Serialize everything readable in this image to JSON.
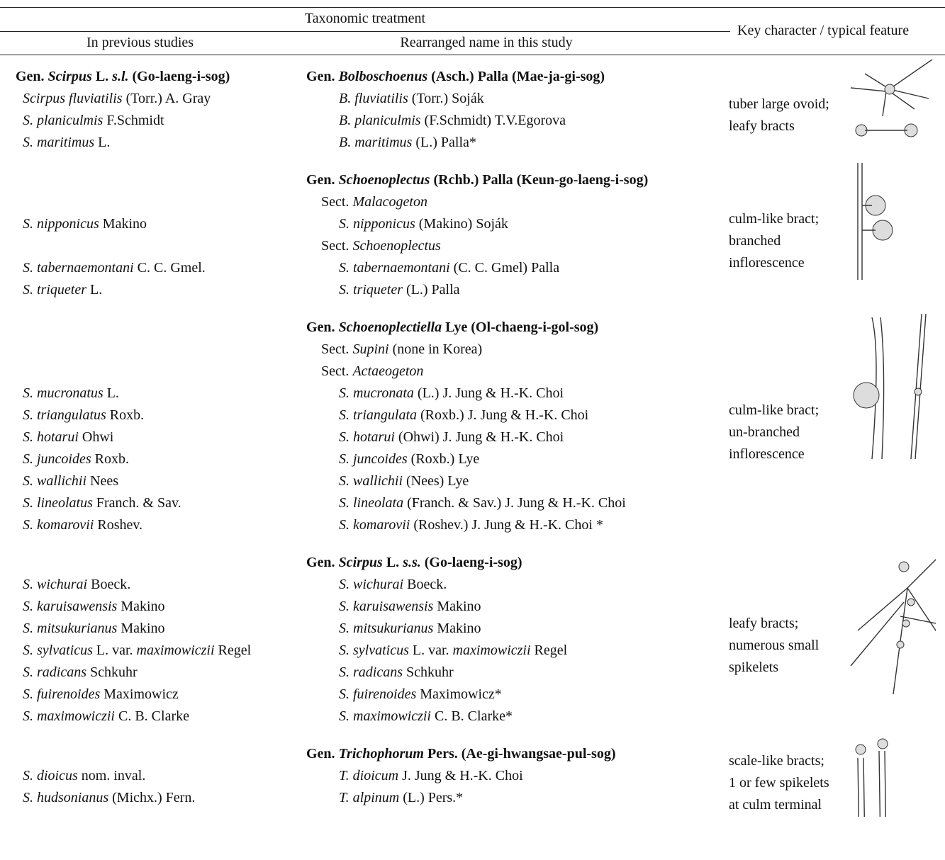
{
  "header": {
    "group": "Taxonomic treatment",
    "prev": "In previous studies",
    "new": "Rearranged name in this study",
    "key": "Key character / typical feature"
  },
  "groups": [
    {
      "heading_prev": [
        "Gen. ",
        {
          "i": "Scirpus"
        },
        " L. ",
        {
          "i": "s.l."
        },
        " (Go-laeng-i-sog)"
      ],
      "heading_new": [
        "Gen. ",
        {
          "i": "Bolboschoenus"
        },
        " (Asch.) Palla (Mae-ja-gi-sog)"
      ],
      "rows": [
        {
          "prev": [
            {
              "i": "Scirpus fluviatilis"
            },
            " (Torr.) A. Gray"
          ],
          "new": [
            {
              "i": "B. fluviatilis"
            },
            " (Torr.) Soják"
          ]
        },
        {
          "prev": [
            {
              "i": "S. planiculmis"
            },
            " F.Schmidt"
          ],
          "new": [
            {
              "i": "B. planiculmis"
            },
            " (F.Schmidt) T.V.Egorova"
          ]
        },
        {
          "prev": [
            {
              "i": "S. maritimus"
            },
            " L."
          ],
          "new": [
            {
              "i": "B. maritimus"
            },
            " (L.) Palla*"
          ]
        }
      ],
      "feature": [
        "tuber large ovoid;",
        "leafy bracts"
      ]
    },
    {
      "heading_new": [
        "Gen. ",
        {
          "i": "Schoenoplectus"
        },
        " (Rchb.) Palla (Keun-go-laeng-i-sog)"
      ],
      "rows": [
        {
          "sect": [
            "Sect. ",
            {
              "i": "Malacogeton"
            }
          ]
        },
        {
          "prev": [
            {
              "i": "S. nipponicus"
            },
            " Makino"
          ],
          "new": [
            {
              "i": "S. nipponicus"
            },
            " (Makino) Soják"
          ]
        },
        {
          "sect": [
            "Sect. ",
            {
              "i": "Schoenoplectus"
            }
          ]
        },
        {
          "prev": [
            {
              "i": "S. tabernaemontani"
            },
            " C. C. Gmel."
          ],
          "new": [
            {
              "i": "S. tabernaemontani"
            },
            " (C. C. Gmel) Palla"
          ]
        },
        {
          "prev": [
            {
              "i": "S. triqueter"
            },
            " L."
          ],
          "new": [
            {
              "i": "S. triqueter"
            },
            " (L.) Palla"
          ]
        }
      ],
      "feature": [
        "culm-like bract;",
        "branched",
        "inflorescence"
      ]
    },
    {
      "heading_new": [
        "Gen. ",
        {
          "i": "Schoenoplectiella"
        },
        " Lye (Ol-chaeng-i-gol-sog)"
      ],
      "rows": [
        {
          "sect": [
            "Sect. ",
            {
              "i": "Supini"
            },
            " (none in Korea)"
          ]
        },
        {
          "sect": [
            "Sect. ",
            {
              "i": "Actaeogeton"
            }
          ]
        },
        {
          "prev": [
            {
              "i": "S. mucronatus"
            },
            " L."
          ],
          "new": [
            {
              "i": "S. mucronata"
            },
            " (L.) J. Jung & H.-K. Choi"
          ]
        },
        {
          "prev": [
            {
              "i": "S. triangulatus"
            },
            " Roxb."
          ],
          "new": [
            {
              "i": "S. triangulata"
            },
            " (Roxb.) J. Jung & H.-K. Choi"
          ]
        },
        {
          "prev": [
            {
              "i": "S. hotarui"
            },
            " Ohwi"
          ],
          "new": [
            {
              "i": "S. hotarui"
            },
            " (Ohwi) J. Jung & H.-K. Choi"
          ]
        },
        {
          "prev": [
            {
              "i": "S. juncoides"
            },
            " Roxb."
          ],
          "new": [
            {
              "i": "S. juncoides"
            },
            " (Roxb.) Lye"
          ]
        },
        {
          "prev": [
            {
              "i": "S. wallichii"
            },
            " Nees"
          ],
          "new": [
            {
              "i": "S. wallichii"
            },
            " (Nees) Lye"
          ]
        },
        {
          "prev": [
            {
              "i": "S. lineolatus"
            },
            " Franch. & Sav."
          ],
          "new": [
            {
              "i": "S. lineolata"
            },
            " (Franch. & Sav.) J. Jung & H.-K. Choi"
          ]
        },
        {
          "prev": [
            {
              "i": "S. komarovii"
            },
            " Roshev."
          ],
          "new": [
            {
              "i": "S. komarovii"
            },
            " (Roshev.) J. Jung & H.-K. Choi *"
          ]
        }
      ],
      "feature": [
        "culm-like bract;",
        "un-branched",
        "inflorescence"
      ]
    },
    {
      "heading_new": [
        "Gen. ",
        {
          "i": "Scirpus"
        },
        " L. ",
        {
          "i": "s.s."
        },
        " (Go-laeng-i-sog)"
      ],
      "rows": [
        {
          "prev": [
            {
              "i": "S. wichurai"
            },
            " Boeck."
          ],
          "new": [
            {
              "i": "S. wichurai"
            },
            " Boeck."
          ]
        },
        {
          "prev": [
            {
              "i": "S. karuisawensis"
            },
            " Makino"
          ],
          "new": [
            {
              "i": "S. karuisawensis"
            },
            " Makino"
          ]
        },
        {
          "prev": [
            {
              "i": "S. mitsukurianus"
            },
            " Makino"
          ],
          "new": [
            {
              "i": "S. mitsukurianus"
            },
            " Makino"
          ]
        },
        {
          "prev": [
            {
              "i": "S. sylvaticus"
            },
            " L. var. ",
            {
              "i": "maximowiczii"
            },
            " Regel"
          ],
          "new": [
            {
              "i": "S. sylvaticus"
            },
            " L. var. ",
            {
              "i": "maximowiczii"
            },
            " Regel"
          ]
        },
        {
          "prev": [
            {
              "i": "S. radicans"
            },
            " Schkuhr"
          ],
          "new": [
            {
              "i": "S. radicans"
            },
            " Schkuhr"
          ]
        },
        {
          "prev": [
            {
              "i": "S. fuirenoides"
            },
            " Maximowicz"
          ],
          "new": [
            {
              "i": "S. fuirenoides"
            },
            " Maximowicz*"
          ]
        },
        {
          "prev": [
            {
              "i": "S. maximowiczii"
            },
            " C. B. Clarke"
          ],
          "new": [
            {
              "i": "S. maximowiczii"
            },
            " C. B. Clarke*"
          ]
        }
      ],
      "feature": [
        "leafy bracts;",
        "numerous small",
        "spikelets"
      ]
    },
    {
      "heading_new": [
        "Gen. ",
        {
          "i": "Trichophorum"
        },
        " Pers. (Ae-gi-hwangsae-pul-sog)"
      ],
      "rows": [
        {
          "prev": [
            {
              "i": "S. dioicus"
            },
            " nom. inval."
          ],
          "new": [
            {
              "i": "T. dioicum"
            },
            " J. Jung & H.-K. Choi"
          ]
        },
        {
          "prev": [
            {
              "i": "S. hudsonianus"
            },
            " (Michx.) Fern."
          ],
          "new": [
            {
              "i": "T. alpinum"
            },
            " (L.) Pers.*"
          ]
        }
      ],
      "feature": [
        "scale-like bracts;",
        "1 or few spikelets",
        "at culm terminal"
      ]
    }
  ]
}
